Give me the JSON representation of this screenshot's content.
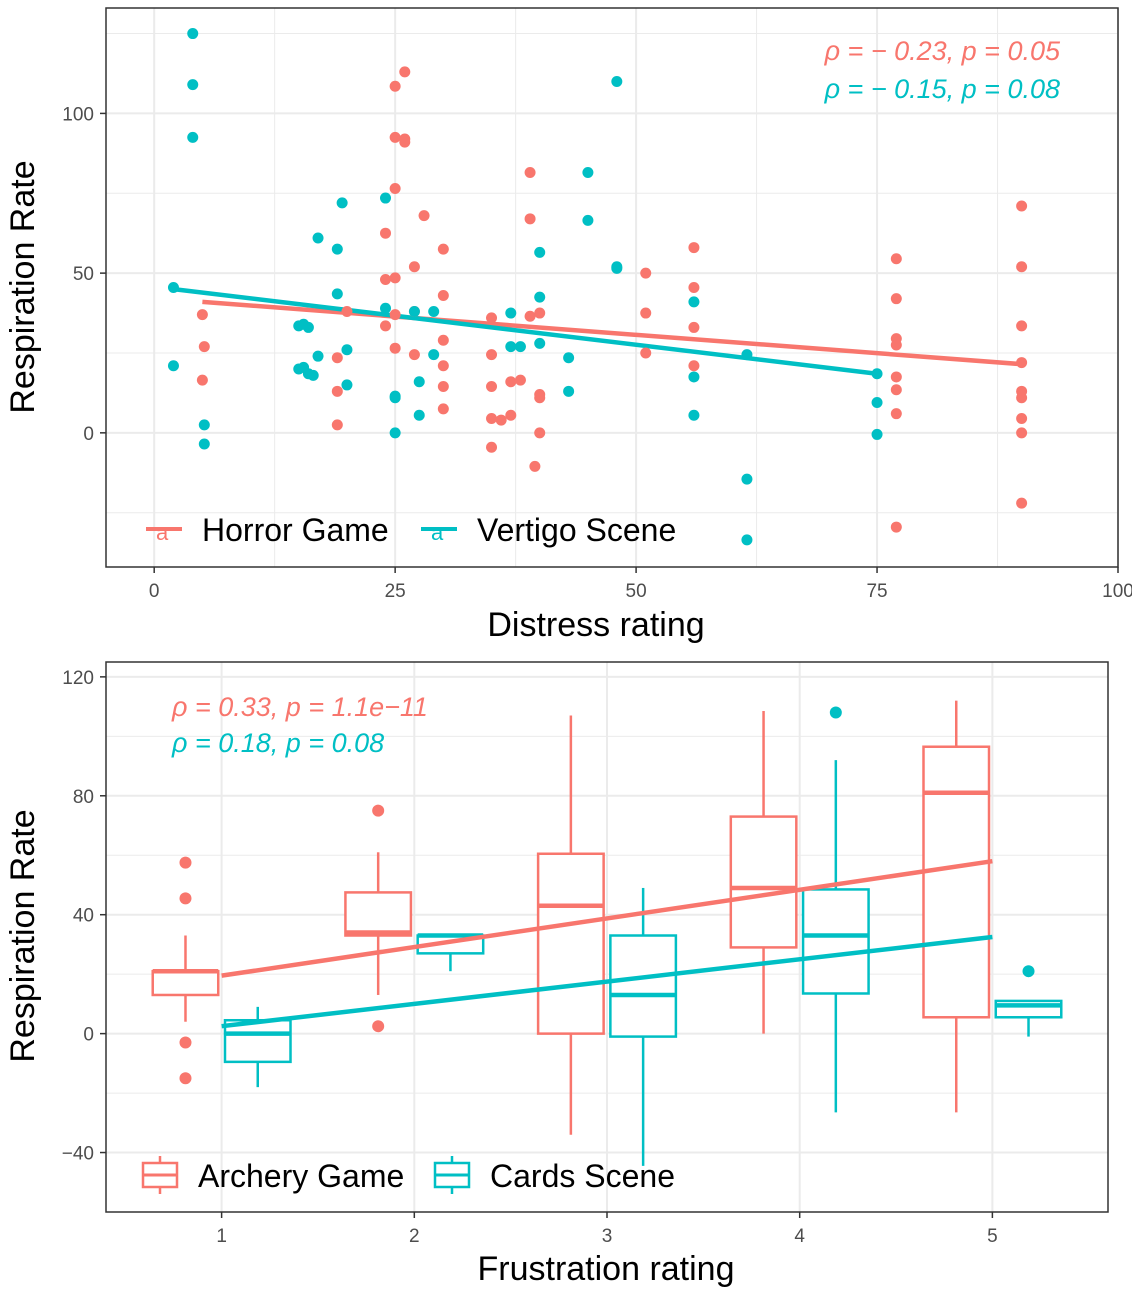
{
  "colors": {
    "series1": "#F8766D",
    "series2": "#00BFC4",
    "grid": "#EBEBEB",
    "border": "#333333"
  },
  "chart_data": [
    {
      "type": "scatter",
      "xlabel": "Distress rating",
      "ylabel": "Respiration Rate",
      "xlim": [
        -5,
        100
      ],
      "ylim": [
        -42,
        133
      ],
      "xticks": [
        0,
        25,
        50,
        75,
        100
      ],
      "yticks": [
        0,
        50,
        100
      ],
      "grid": true,
      "legend_position": "bottom-left",
      "annotations": [
        {
          "rho": "ρ = − 0.23, ",
          "p": "p = 0.05",
          "color": "#F8766D"
        },
        {
          "rho": "ρ = − 0.15, ",
          "p": "p = 0.08",
          "color": "#00BFC4"
        }
      ],
      "series": [
        {
          "name": "Horror Game",
          "color": "#F8766D",
          "points": [
            [
              5,
              37
            ],
            [
              5.2,
              27
            ],
            [
              5,
              16.5
            ],
            [
              19,
              23.5
            ],
            [
              19,
              13
            ],
            [
              19,
              2.5
            ],
            [
              20,
              38
            ],
            [
              24,
              62.5
            ],
            [
              24,
              48
            ],
            [
              24,
              33.5
            ],
            [
              25,
              108.5
            ],
            [
              25,
              92.5
            ],
            [
              25,
              76.5
            ],
            [
              25,
              48.5
            ],
            [
              25,
              37
            ],
            [
              25,
              26.5
            ],
            [
              26,
              113
            ],
            [
              26,
              92
            ],
            [
              26,
              91
            ],
            [
              27,
              52
            ],
            [
              27,
              38
            ],
            [
              27,
              24.5
            ],
            [
              28,
              68
            ],
            [
              30,
              57.5
            ],
            [
              30,
              43
            ],
            [
              30,
              29
            ],
            [
              30,
              21
            ],
            [
              30,
              14.5
            ],
            [
              30,
              7.5
            ],
            [
              35,
              24.5
            ],
            [
              35,
              36
            ],
            [
              35,
              14.5
            ],
            [
              35,
              4.5
            ],
            [
              35,
              -4.5
            ],
            [
              36,
              4
            ],
            [
              37,
              16
            ],
            [
              37,
              5.5
            ],
            [
              38,
              16.5
            ],
            [
              39,
              81.5
            ],
            [
              39,
              67
            ],
            [
              39,
              36.5
            ],
            [
              40,
              37.5
            ],
            [
              40,
              12
            ],
            [
              40,
              11
            ],
            [
              39.5,
              -10.5
            ],
            [
              40,
              0
            ],
            [
              51,
              50
            ],
            [
              51,
              37.5
            ],
            [
              51,
              25
            ],
            [
              56,
              58
            ],
            [
              56,
              45.5
            ],
            [
              56,
              33
            ],
            [
              56,
              21
            ],
            [
              77,
              54.5
            ],
            [
              77,
              42
            ],
            [
              77,
              29.5
            ],
            [
              77,
              27.5
            ],
            [
              77,
              17.5
            ],
            [
              77,
              13.5
            ],
            [
              77,
              6
            ],
            [
              77,
              -29.5
            ],
            [
              90,
              71
            ],
            [
              90,
              52
            ],
            [
              90,
              33.5
            ],
            [
              90,
              22
            ],
            [
              90,
              13
            ],
            [
              90,
              11
            ],
            [
              90,
              4.5
            ],
            [
              90,
              0
            ],
            [
              90,
              -22
            ]
          ],
          "fit": [
            [
              5,
              41
            ],
            [
              90,
              21.5
            ]
          ]
        },
        {
          "name": "Vertigo Scene",
          "color": "#00BFC4",
          "points": [
            [
              2,
              45.5
            ],
            [
              2,
              21
            ],
            [
              4,
              125
            ],
            [
              4,
              109
            ],
            [
              4,
              92.5
            ],
            [
              5.2,
              2.5
            ],
            [
              5.2,
              -3.5
            ],
            [
              15,
              33.5
            ],
            [
              15,
              20
            ],
            [
              15.5,
              20.5
            ],
            [
              15.5,
              34
            ],
            [
              16,
              33
            ],
            [
              16,
              18.5
            ],
            [
              16.5,
              18
            ],
            [
              17,
              61
            ],
            [
              17,
              24
            ],
            [
              19,
              57.5
            ],
            [
              19,
              43.5
            ],
            [
              19.5,
              72
            ],
            [
              20,
              26
            ],
            [
              20,
              15
            ],
            [
              24,
              73.5
            ],
            [
              24,
              39
            ],
            [
              25,
              11.5
            ],
            [
              25,
              11
            ],
            [
              25,
              0
            ],
            [
              27,
              38
            ],
            [
              27.5,
              16
            ],
            [
              27.5,
              5.5
            ],
            [
              29,
              38
            ],
            [
              29,
              24.5
            ],
            [
              37,
              37.5
            ],
            [
              37,
              27
            ],
            [
              38,
              27
            ],
            [
              40,
              56.5
            ],
            [
              40,
              42.5
            ],
            [
              40,
              28
            ],
            [
              43,
              23.5
            ],
            [
              43,
              13
            ],
            [
              45,
              81.5
            ],
            [
              45,
              66.5
            ],
            [
              48,
              110
            ],
            [
              48,
              52
            ],
            [
              48,
              51.5
            ],
            [
              56,
              41
            ],
            [
              56,
              17.5
            ],
            [
              56,
              5.5
            ],
            [
              61.5,
              24.5
            ],
            [
              61.5,
              -14.5
            ],
            [
              61.5,
              -33.5
            ],
            [
              75,
              18.5
            ],
            [
              75,
              9.5
            ],
            [
              75,
              -0.5
            ]
          ],
          "fit": [
            [
              2,
              45
            ],
            [
              75,
              18.5
            ]
          ]
        }
      ]
    },
    {
      "type": "box",
      "xlabel": "Frustration rating",
      "ylabel": "Respiration Rate",
      "xlim": [
        0.4,
        5.6
      ],
      "ylim": [
        -60,
        125
      ],
      "xticks": [
        1,
        2,
        3,
        4,
        5
      ],
      "yticks": [
        -40,
        0,
        40,
        80,
        120
      ],
      "grid": true,
      "legend_position": "bottom-left",
      "annotations": [
        {
          "rho": "ρ = 0.33, ",
          "p": "p = 1.1e−11",
          "color": "#F8766D"
        },
        {
          "rho": "ρ = 0.18, ",
          "p": "p = 0.08",
          "color": "#00BFC4"
        }
      ],
      "series": [
        {
          "name": "Archery Game",
          "color": "#F8766D",
          "boxes": [
            {
              "x": 1,
              "q1": 13,
              "median": 21,
              "q3": 21,
              "whisker_low": 4,
              "whisker_high": 33,
              "outliers": [
                57.5,
                45.5,
                -3,
                -15
              ]
            },
            {
              "x": 2,
              "q1": 33,
              "median": 34,
              "q3": 47.5,
              "whisker_low": 13,
              "whisker_high": 61,
              "outliers": [
                75,
                2.5
              ]
            },
            {
              "x": 3,
              "q1": 0,
              "median": 43,
              "q3": 60.5,
              "whisker_low": -34,
              "whisker_high": 107,
              "outliers": []
            },
            {
              "x": 4,
              "q1": 29,
              "median": 49,
              "q3": 73,
              "whisker_low": 0,
              "whisker_high": 108.5,
              "outliers": []
            },
            {
              "x": 5,
              "q1": 5.5,
              "median": 81,
              "q3": 96.5,
              "whisker_low": -26.5,
              "whisker_high": 112,
              "outliers": []
            }
          ],
          "fit": [
            [
              1,
              19.5
            ],
            [
              5,
              58
            ]
          ]
        },
        {
          "name": "Cards Scene",
          "color": "#00BFC4",
          "boxes": [
            {
              "x": 1,
              "q1": -9.5,
              "median": 0,
              "q3": 4.5,
              "whisker_low": -18,
              "whisker_high": 9,
              "outliers": []
            },
            {
              "x": 2,
              "q1": 27,
              "median": 33,
              "q3": 33,
              "whisker_low": 21,
              "whisker_high": 33,
              "outliers": []
            },
            {
              "x": 3,
              "q1": -1,
              "median": 13,
              "q3": 33,
              "whisker_low": -44.5,
              "whisker_high": 49,
              "outliers": []
            },
            {
              "x": 4,
              "q1": 13.5,
              "median": 33,
              "q3": 48.5,
              "whisker_low": -26.5,
              "whisker_high": 92,
              "outliers": [
                108
              ]
            },
            {
              "x": 5,
              "q1": 5.5,
              "median": 9.5,
              "q3": 11,
              "whisker_low": -1,
              "whisker_high": 11,
              "outliers": [
                21
              ]
            }
          ],
          "fit": [
            [
              1,
              2.5
            ],
            [
              5,
              32.5
            ]
          ]
        }
      ]
    }
  ]
}
